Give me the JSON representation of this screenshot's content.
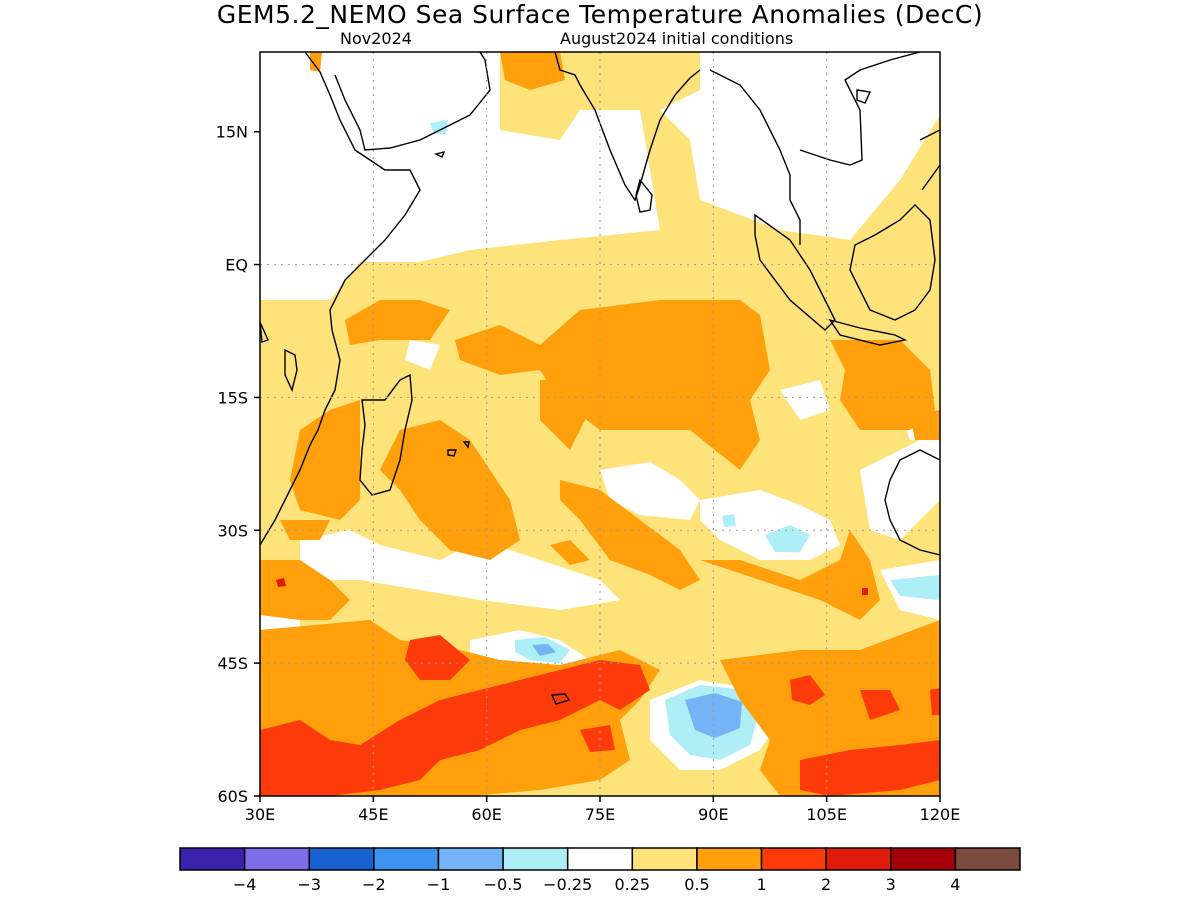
{
  "title": "GEM5.2_NEMO Sea Surface Temperature Anomalies (DecC)",
  "subtitle_left": "Nov2024",
  "subtitle_right": "August2024 initial conditions",
  "map": {
    "lon_range": [
      30,
      120
    ],
    "lat_range": [
      -60,
      24
    ],
    "grid": true,
    "lat_ticks": [
      {
        "value": 15,
        "label": "15N"
      },
      {
        "value": 0,
        "label": "EQ"
      },
      {
        "value": -15,
        "label": "15S"
      },
      {
        "value": -30,
        "label": "30S"
      },
      {
        "value": -45,
        "label": "45S"
      },
      {
        "value": -60,
        "label": "60S"
      }
    ],
    "lon_ticks": [
      {
        "value": 30,
        "label": "30E"
      },
      {
        "value": 45,
        "label": "45E"
      },
      {
        "value": 60,
        "label": "60E"
      },
      {
        "value": 75,
        "label": "75E"
      },
      {
        "value": 90,
        "label": "90E"
      },
      {
        "value": 105,
        "label": "105E"
      },
      {
        "value": 120,
        "label": "120E"
      }
    ]
  },
  "colorbar": {
    "colors": [
      "#3b22ad",
      "#7f6ce8",
      "#1660d0",
      "#3d93f0",
      "#74b4f6",
      "#aeeef6",
      "#ffffff",
      "#fde37a",
      "#fe9f0b",
      "#fd3b0a",
      "#e01b09",
      "#a50007",
      "#7a4a3d"
    ],
    "labels": [
      "−4",
      "−3",
      "−2",
      "−1",
      "−0.5",
      "−0.25",
      "0.25",
      "0.5",
      "1",
      "2",
      "3",
      "4"
    ]
  }
}
